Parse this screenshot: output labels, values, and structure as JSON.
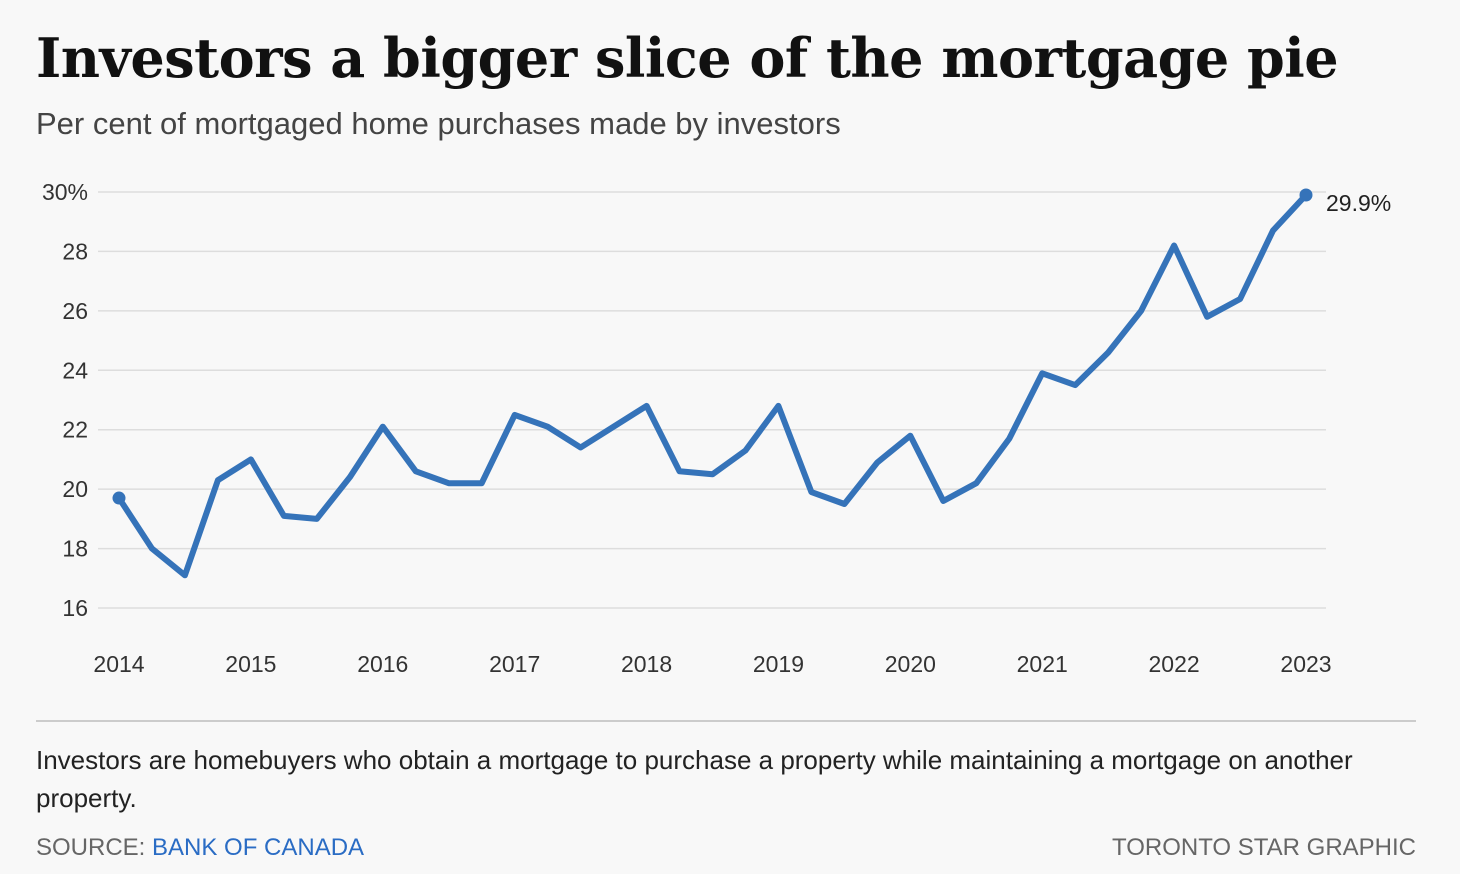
{
  "header": {
    "title": "Investors a bigger slice of the mortgage pie",
    "subtitle": "Per cent of mortgaged home purchases made by investors"
  },
  "note": {
    "text": "Investors are homebuyers who obtain a mortgage to purchase a property while maintaining a mortgage on another property."
  },
  "footer": {
    "source_prefix": "SOURCE: ",
    "source_name": "BANK OF CANADA",
    "credit": "TORONTO STAR GRAPHIC"
  },
  "colors": {
    "line": "#3573b9",
    "grid": "#dddddd",
    "background": "#f8f8f8",
    "source_link": "#2a6cc4"
  },
  "chart_data": {
    "type": "line",
    "title": "Investors a bigger slice of the mortgage pie",
    "subtitle": "Per cent of mortgaged home purchases made by investors",
    "xlabel": "",
    "ylabel": "",
    "frequency": "quarterly",
    "x_start": 2014,
    "x_step": 0.25,
    "xlim": [
      2014,
      2023
    ],
    "ylim": [
      16,
      30
    ],
    "y_ticks": [
      16,
      18,
      20,
      22,
      24,
      26,
      28,
      30
    ],
    "y_tick_labels": [
      "16",
      "18",
      "20",
      "22",
      "24",
      "26",
      "28",
      "30%"
    ],
    "x_ticks": [
      2014,
      2015,
      2016,
      2017,
      2018,
      2019,
      2020,
      2021,
      2022,
      2023
    ],
    "x_tick_labels": [
      "2014",
      "2015",
      "2016",
      "2017",
      "2018",
      "2019",
      "2020",
      "2021",
      "2022",
      "2023"
    ],
    "grid": true,
    "legend": "none",
    "series": [
      {
        "values": [
          19.7,
          18.0,
          17.1,
          20.3,
          21.0,
          19.1,
          19.0,
          20.4,
          22.1,
          20.6,
          20.2,
          20.2,
          22.5,
          22.1,
          21.4,
          22.1,
          22.8,
          20.6,
          20.5,
          21.3,
          22.8,
          19.9,
          19.5,
          20.9,
          21.8,
          19.6,
          20.2,
          21.7,
          23.9,
          23.5,
          24.6,
          26.0,
          28.2,
          25.8,
          26.4,
          28.7,
          29.9
        ]
      }
    ],
    "annotations": [
      {
        "label": "29.9%"
      }
    ]
  }
}
